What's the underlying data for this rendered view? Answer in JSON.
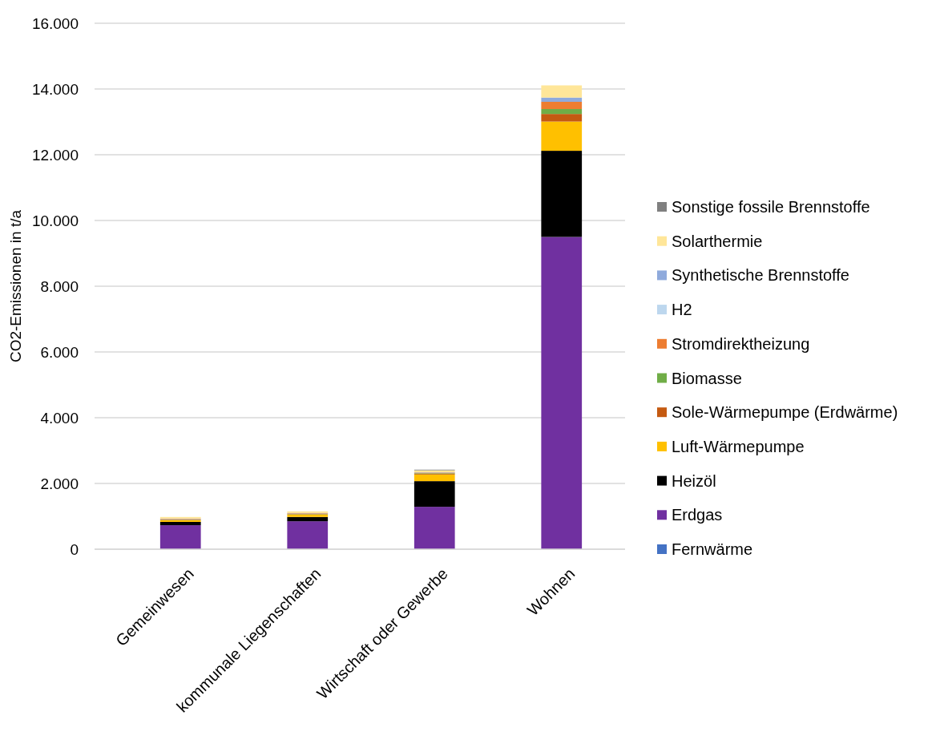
{
  "chart_data": {
    "type": "bar",
    "stacked": true,
    "ylabel": "CO2-Emissionen in t/a",
    "categories": [
      "Gemeinwesen",
      "kommunale Liegenschaften",
      "Wirtschaft oder Gewerbe",
      "Wohnen"
    ],
    "ylim": [
      0,
      16000
    ],
    "yticks": [
      {
        "value": 0,
        "label": "0"
      },
      {
        "value": 2000,
        "label": "2.000"
      },
      {
        "value": 4000,
        "label": "4.000"
      },
      {
        "value": 6000,
        "label": "6.000"
      },
      {
        "value": 8000,
        "label": "8.000"
      },
      {
        "value": 10000,
        "label": "10.000"
      },
      {
        "value": 12000,
        "label": "12.000"
      },
      {
        "value": 14000,
        "label": "14.000"
      },
      {
        "value": 16000,
        "label": "16.000"
      }
    ],
    "grid": "y",
    "legend": "right",
    "series": [
      {
        "name": "Fernwärme",
        "color": "#4472c4",
        "values": [
          0,
          0,
          0,
          0
        ]
      },
      {
        "name": "Erdgas",
        "color": "#7030a0",
        "values": [
          730,
          850,
          1290,
          9500
        ]
      },
      {
        "name": "Heizöl",
        "color": "#000000",
        "values": [
          100,
          130,
          780,
          2620
        ]
      },
      {
        "name": "Luft-Wärmepumpe",
        "color": "#ffc000",
        "values": [
          50,
          70,
          200,
          890
        ]
      },
      {
        "name": "Sole-Wärmepumpe (Erdwärme)",
        "color": "#c55a11",
        "values": [
          10,
          10,
          20,
          230
        ]
      },
      {
        "name": "Biomasse",
        "color": "#70ad47",
        "values": [
          10,
          10,
          20,
          150
        ]
      },
      {
        "name": "Stromdirektheizung",
        "color": "#ed7d31",
        "values": [
          20,
          20,
          20,
          220
        ]
      },
      {
        "name": "H2",
        "color": "#bdd7ee",
        "values": [
          0,
          0,
          0,
          0
        ]
      },
      {
        "name": "Synthetische Brennstoffe",
        "color": "#8faadc",
        "values": [
          10,
          10,
          10,
          130
        ]
      },
      {
        "name": "Solarthermie",
        "color": "#ffe699",
        "values": [
          50,
          50,
          60,
          370
        ]
      },
      {
        "name": "Sonstige fossile Brennstoffe",
        "color": "#808080",
        "values": [
          0,
          0,
          20,
          0
        ]
      }
    ]
  }
}
